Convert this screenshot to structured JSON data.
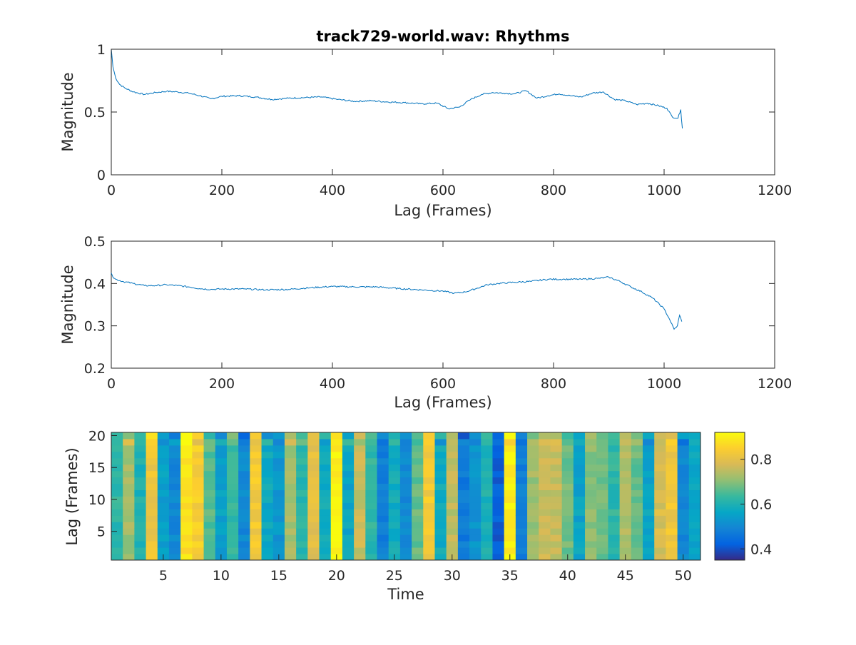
{
  "figure": {
    "title": "track729-world.wav: Rhythms"
  },
  "chart_data": [
    {
      "type": "line",
      "title": "track729-world.wav: Rhythms",
      "xlabel": "Lag (Frames)",
      "ylabel": "Magnitude",
      "xlim": [
        0,
        1200
      ],
      "ylim": [
        0,
        1
      ],
      "xticks": [
        "0",
        "200",
        "400",
        "600",
        "800",
        "1000",
        "1200"
      ],
      "yticks": [
        "0",
        "0.5",
        "1"
      ],
      "grid": false,
      "color": "#0072BD",
      "series": [
        {
          "x": [
            0,
            3,
            8,
            15,
            25,
            40,
            60,
            80,
            100,
            120,
            140,
            160,
            180,
            200,
            230,
            260,
            290,
            320,
            350,
            380,
            410,
            440,
            470,
            500,
            530,
            560,
            590,
            610,
            630,
            650,
            670,
            690,
            710,
            730,
            750,
            770,
            790,
            810,
            830,
            850,
            870,
            890,
            910,
            930,
            950,
            970,
            990,
            1005,
            1015,
            1025,
            1030,
            1033
          ],
          "y": [
            1.0,
            0.86,
            0.77,
            0.72,
            0.69,
            0.66,
            0.64,
            0.655,
            0.665,
            0.66,
            0.65,
            0.63,
            0.605,
            0.625,
            0.63,
            0.62,
            0.6,
            0.61,
            0.615,
            0.62,
            0.6,
            0.585,
            0.59,
            0.58,
            0.575,
            0.565,
            0.57,
            0.525,
            0.54,
            0.6,
            0.64,
            0.655,
            0.65,
            0.645,
            0.67,
            0.61,
            0.63,
            0.645,
            0.63,
            0.62,
            0.65,
            0.66,
            0.6,
            0.59,
            0.56,
            0.57,
            0.55,
            0.53,
            0.46,
            0.45,
            0.52,
            0.37
          ]
        }
      ]
    },
    {
      "type": "line",
      "xlabel": "Lag (Frames)",
      "ylabel": "Magnitude",
      "xlim": [
        0,
        1200
      ],
      "ylim": [
        0.2,
        0.5
      ],
      "xticks": [
        "0",
        "200",
        "400",
        "600",
        "800",
        "1000",
        "1200"
      ],
      "yticks": [
        "0.2",
        "0.3",
        "0.4",
        "0.5"
      ],
      "grid": false,
      "color": "#0072BD",
      "series": [
        {
          "x": [
            0,
            3,
            8,
            20,
            40,
            60,
            80,
            100,
            120,
            140,
            160,
            180,
            200,
            240,
            280,
            320,
            360,
            400,
            440,
            480,
            520,
            560,
            600,
            620,
            640,
            660,
            680,
            700,
            730,
            760,
            790,
            820,
            850,
            880,
            900,
            920,
            940,
            960,
            980,
            1000,
            1010,
            1018,
            1024,
            1028,
            1032
          ],
          "y": [
            0.425,
            0.415,
            0.41,
            0.405,
            0.4,
            0.395,
            0.395,
            0.397,
            0.395,
            0.392,
            0.388,
            0.386,
            0.387,
            0.387,
            0.385,
            0.386,
            0.39,
            0.393,
            0.392,
            0.392,
            0.388,
            0.385,
            0.382,
            0.377,
            0.38,
            0.388,
            0.397,
            0.4,
            0.403,
            0.405,
            0.41,
            0.41,
            0.41,
            0.412,
            0.415,
            0.405,
            0.392,
            0.38,
            0.365,
            0.34,
            0.315,
            0.292,
            0.3,
            0.325,
            0.31
          ]
        }
      ]
    },
    {
      "type": "heatmap",
      "xlabel": "Time",
      "ylabel": "Lag (Frames)",
      "xlim": [
        0.5,
        51.5
      ],
      "ylim": [
        0.5,
        20.5
      ],
      "xticks": [
        "5",
        "10",
        "15",
        "20",
        "25",
        "30",
        "35",
        "40",
        "45",
        "50"
      ],
      "yticks": [
        "5",
        "10",
        "15",
        "20"
      ],
      "grid": false,
      "colormap": "parula",
      "colorbar": {
        "range": [
          0.35,
          0.92
        ],
        "ticks": [
          "0.4",
          "0.6",
          "0.8"
        ]
      },
      "columns": [
        0.62,
        0.72,
        0.6,
        0.82,
        0.55,
        0.5,
        0.88,
        0.84,
        0.66,
        0.55,
        0.63,
        0.5,
        0.83,
        0.57,
        0.53,
        0.72,
        0.62,
        0.8,
        0.58,
        0.9,
        0.56,
        0.76,
        0.62,
        0.48,
        0.58,
        0.5,
        0.67,
        0.83,
        0.58,
        0.75,
        0.47,
        0.52,
        0.6,
        0.42,
        0.9,
        0.48,
        0.72,
        0.76,
        0.76,
        0.68,
        0.56,
        0.7,
        0.68,
        0.62,
        0.73,
        0.67,
        0.56,
        0.78,
        0.82,
        0.5,
        0.56
      ]
    }
  ]
}
